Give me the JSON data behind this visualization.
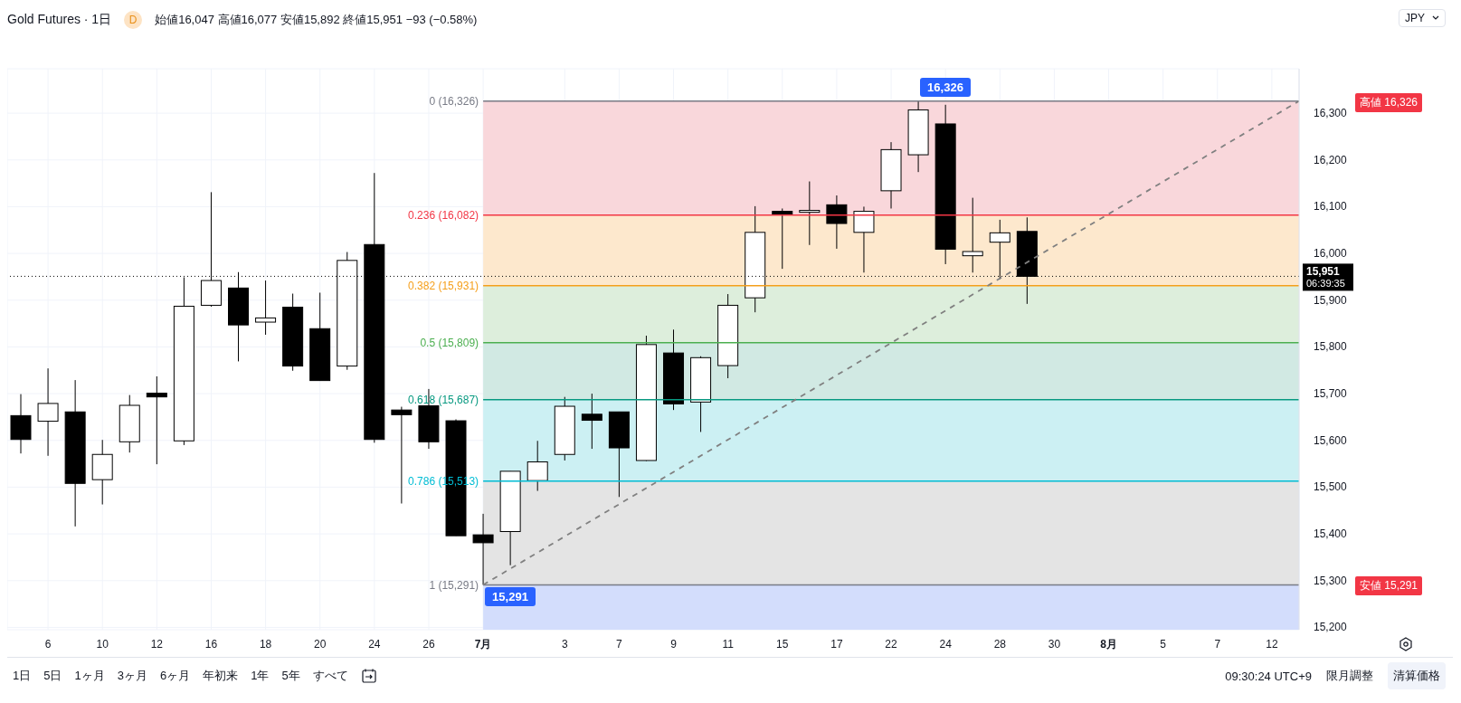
{
  "chart_data": {
    "type": "candlestick",
    "title": "Gold Futures · 1日",
    "subtitle": "始値16,047 高値16,077 安値15,892 終値15,951 −93 (−0.58%)",
    "categories": [
      null,
      "6",
      null,
      "10",
      null,
      "12",
      null,
      "16",
      null,
      "18",
      null,
      "20",
      null,
      "24",
      null,
      "26",
      null,
      "7月",
      null,
      null,
      "3",
      null,
      "7",
      null,
      "9",
      null,
      "11",
      null,
      "15",
      null,
      "17",
      null,
      "22",
      null,
      "24",
      null,
      "28",
      null,
      "30",
      null,
      "8月",
      null,
      "5",
      null,
      "7",
      null,
      "12",
      null
    ],
    "ohlc": [
      [
        15653,
        15699,
        15572,
        15602
      ],
      [
        15641,
        15754,
        15567,
        15679
      ],
      [
        15661,
        15729,
        15416,
        15508
      ],
      [
        15516,
        15601,
        15463,
        15570
      ],
      [
        15597,
        15697,
        15574,
        15675
      ],
      [
        15701,
        15737,
        15549,
        15693
      ],
      [
        15599,
        15949,
        15590,
        15887
      ],
      [
        15889,
        16131,
        15886,
        15942
      ],
      [
        15926,
        15960,
        15769,
        15847
      ],
      [
        15853,
        15942,
        15826,
        15862
      ],
      [
        15885,
        15914,
        15749,
        15759
      ],
      [
        15839,
        15916,
        15728,
        15728
      ],
      [
        15759,
        16003,
        15751,
        15985
      ],
      [
        16019,
        16172,
        15595,
        15602
      ],
      [
        15665,
        15672,
        15465,
        15655
      ],
      [
        15674,
        15710,
        15582,
        15597
      ],
      [
        15642,
        15645,
        15396,
        15396
      ],
      [
        15398,
        15443,
        15291,
        15381
      ],
      [
        15405,
        15534,
        15333,
        15534
      ],
      [
        15514,
        15599,
        15492,
        15554
      ],
      [
        15570,
        15693,
        15557,
        15673
      ],
      [
        15656,
        15700,
        15582,
        15643
      ],
      [
        15661,
        15661,
        15479,
        15584
      ],
      [
        15557,
        15824,
        15556,
        15805
      ],
      [
        15787,
        15837,
        15665,
        15678
      ],
      [
        15682,
        15780,
        15618,
        15777
      ],
      [
        15760,
        15913,
        15733,
        15889
      ],
      [
        15905,
        16101,
        15874,
        16045
      ],
      [
        16090,
        16096,
        15967,
        16084
      ],
      [
        16088,
        16154,
        16018,
        16092
      ],
      [
        16104,
        16124,
        16010,
        16064
      ],
      [
        16045,
        16100,
        15959,
        16090
      ],
      [
        16134,
        16238,
        16096,
        16222
      ],
      [
        16211,
        16326,
        16174,
        16307
      ],
      [
        16277,
        16318,
        15977,
        16009
      ],
      [
        15995,
        16119,
        15959,
        16004
      ],
      [
        16024,
        16072,
        15945,
        16044
      ],
      [
        16047,
        16077,
        15892,
        15951
      ],
      null,
      null,
      null,
      null,
      null,
      null,
      null,
      null,
      null,
      null
    ],
    "colors": [
      "#000000",
      "#ffffff",
      "#000000",
      "#ffffff",
      "#ffffff",
      "#000000",
      "#ffffff",
      "#ffffff",
      "#000000",
      "#ffffff",
      "#000000",
      "#000000",
      "#ffffff",
      "#000000",
      "#000000",
      "#000000",
      "#000000",
      "#000000",
      "#ffffff",
      "#ffffff",
      "#ffffff",
      "#000000",
      "#000000",
      "#ffffff",
      "#000000",
      "#ffffff",
      "#ffffff",
      "#ffffff",
      "#000000",
      "#ffffff",
      "#000000",
      "#ffffff",
      "#ffffff",
      "#ffffff",
      "#000000",
      "#ffffff",
      "#ffffff",
      "#000000",
      null,
      null,
      null,
      null,
      null,
      null,
      null,
      null,
      null,
      null
    ],
    "series": [
      {
        "type": "line",
        "color": "#808080",
        "line_style": "dashed",
        "values": [
          null,
          null,
          null,
          null,
          null,
          null,
          null,
          null,
          null,
          null,
          null,
          null,
          null,
          null,
          null,
          null,
          null,
          15291,
          null,
          null,
          null,
          null,
          null,
          null,
          null,
          null,
          null,
          null,
          null,
          null,
          null,
          null,
          null,
          null,
          null,
          null,
          null,
          null,
          null,
          null,
          null,
          null,
          null,
          null,
          null,
          null,
          null,
          16326
        ]
      }
    ],
    "ylim": [
      15195,
      16395
    ],
    "yticks": [
      {
        "value": 15200,
        "label": "15,200"
      },
      {
        "value": 15300,
        "label": "15,300"
      },
      {
        "value": 15400,
        "label": "15,400"
      },
      {
        "value": 15500,
        "label": "15,500"
      },
      {
        "value": 15600,
        "label": "15,600"
      },
      {
        "value": 15700,
        "label": "15,700"
      },
      {
        "value": 15800,
        "label": "15,800"
      },
      {
        "value": 15900,
        "label": "15,900"
      },
      {
        "value": 16000,
        "label": "16,000"
      },
      {
        "value": 16100,
        "label": "16,100"
      },
      {
        "value": 16200,
        "label": "16,200"
      },
      {
        "value": 16300,
        "label": "16,300"
      }
    ],
    "grid": true,
    "ref_lines": [
      {
        "axis": "y",
        "value": 16326,
        "label": "0 (16,326)",
        "color": "#787b86"
      },
      {
        "axis": "y",
        "value": 16082,
        "label": "0.236 (16,082)",
        "color": "#f23645"
      },
      {
        "axis": "y",
        "value": 15931,
        "label": "0.382 (15,931)",
        "color": "#f59f1b"
      },
      {
        "axis": "y",
        "value": 15809,
        "label": "0.5 (15,809)",
        "color": "#4caf50"
      },
      {
        "axis": "y",
        "value": 15687,
        "label": "0.618 (15,687)",
        "color": "#089981"
      },
      {
        "axis": "y",
        "value": 15513,
        "label": "0.786 (15,513)",
        "color": "#00bcd4"
      },
      {
        "axis": "y",
        "value": 15291,
        "label": "1 (15,291)",
        "color": "#787b86"
      },
      {
        "axis": "y",
        "value": 15951,
        "label": "15,951",
        "color": "#000000",
        "line_style": "dotted"
      }
    ],
    "bands": [
      {
        "axis": "y",
        "from": 16082,
        "to": 16326,
        "color": "#f9d7db"
      },
      {
        "axis": "y",
        "from": 15931,
        "to": 16082,
        "color": "#fde8cd"
      },
      {
        "axis": "y",
        "from": 15809,
        "to": 15931,
        "color": "#ddeedc"
      },
      {
        "axis": "y",
        "from": 15687,
        "to": 15809,
        "color": "#d1e9e3"
      },
      {
        "axis": "y",
        "from": 15513,
        "to": 15687,
        "color": "#ccf0f3"
      },
      {
        "axis": "y",
        "from": 15291,
        "to": 15513,
        "color": "#e4e4e4"
      },
      {
        "axis": "y",
        "from": 15195,
        "to": 15291,
        "color": "#d3ddfc"
      }
    ],
    "annotations": [
      {
        "text": "16,326",
        "y": 16326
      },
      {
        "text": "15,291",
        "x": "7月",
        "y": 15291
      },
      "高値 16,326",
      "安値 15,291",
      "D",
      "JPY",
      "06:39:35",
      "1日",
      "5日",
      "1ヶ月",
      "3ヶ月",
      "6ヶ月",
      "年初来",
      "1年",
      "5年",
      "すべて",
      "09:30:24 UTC+9",
      "限月調整",
      "清算価格"
    ]
  }
}
